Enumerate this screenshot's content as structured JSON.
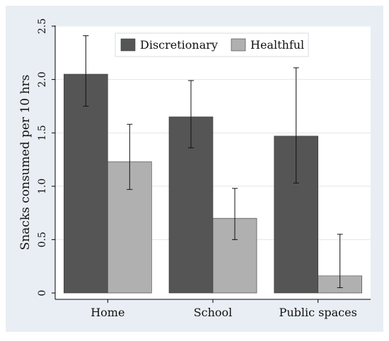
{
  "chart_data": {
    "type": "bar",
    "title": "",
    "xlabel": "",
    "ylabel": "Snacks consumed per 10 hrs",
    "ylim": [
      0,
      2.5
    ],
    "yticks": [
      0,
      0.5,
      1.0,
      1.5,
      2.0,
      2.5
    ],
    "ytick_labels": [
      "0",
      "0.5",
      "1.0",
      "1.5",
      "2.0",
      "2.5"
    ],
    "grid": true,
    "legend_position": "top-center",
    "categories": [
      "Home",
      "School",
      "Public spaces"
    ],
    "series": [
      {
        "name": "Discretionary",
        "color": "#555555",
        "values": [
          2.05,
          1.65,
          1.47
        ],
        "error_low": [
          1.75,
          1.36,
          1.03
        ],
        "error_high": [
          2.41,
          1.99,
          2.11
        ]
      },
      {
        "name": "Healthful",
        "color": "#b0b0b0",
        "values": [
          1.23,
          0.7,
          0.16
        ],
        "error_low": [
          0.97,
          0.5,
          0.05
        ],
        "error_high": [
          1.58,
          0.98,
          0.55
        ]
      }
    ]
  },
  "colors": {
    "outer_background": "#e8eef3",
    "plot_background": "#ffffff",
    "grid": "#dfe7ee",
    "axis": "#000000"
  }
}
